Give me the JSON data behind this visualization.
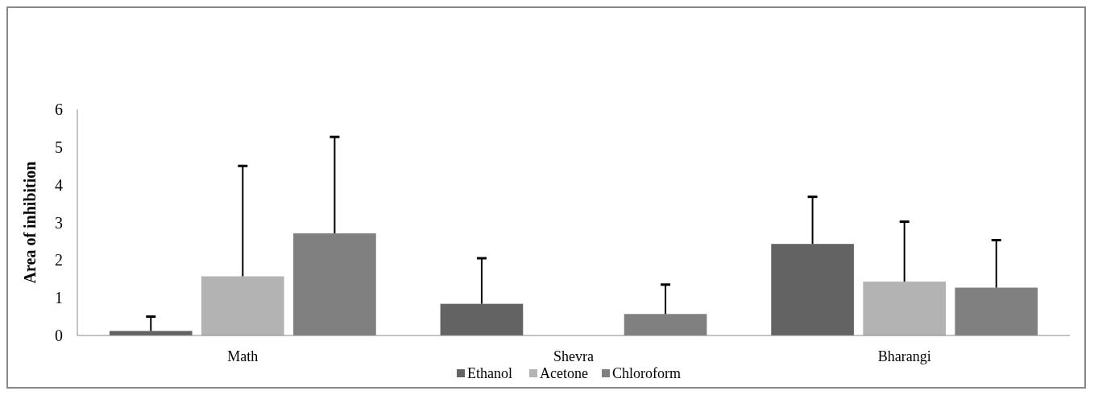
{
  "chart_data": {
    "type": "bar",
    "ylabel": "Area of inhibition",
    "categories": [
      "Math",
      "Shevra",
      "Bharangi"
    ],
    "series": [
      {
        "name": "Ethanol",
        "color": "#636363",
        "values": [
          0.12,
          0.84,
          2.43
        ],
        "errors": [
          [
            0.12,
            0.5
          ],
          [
            0.84,
            2.05
          ],
          [
            2.43,
            3.68
          ]
        ]
      },
      {
        "name": "Acetone",
        "color": "#b3b3b3",
        "values": [
          1.57,
          0,
          1.43
        ],
        "errors": [
          [
            1.57,
            4.5
          ],
          null,
          [
            1.43,
            3.02
          ]
        ]
      },
      {
        "name": "Chloroform",
        "color": "#808080",
        "values": [
          2.71,
          0.57,
          1.27
        ],
        "errors": [
          [
            2.71,
            5.27
          ],
          [
            0.57,
            1.35
          ],
          [
            1.27,
            2.53
          ]
        ]
      }
    ],
    "ylim": [
      0,
      6
    ],
    "yticks": [
      0,
      1,
      2,
      3,
      4,
      5,
      6
    ],
    "legend": "bottom"
  }
}
